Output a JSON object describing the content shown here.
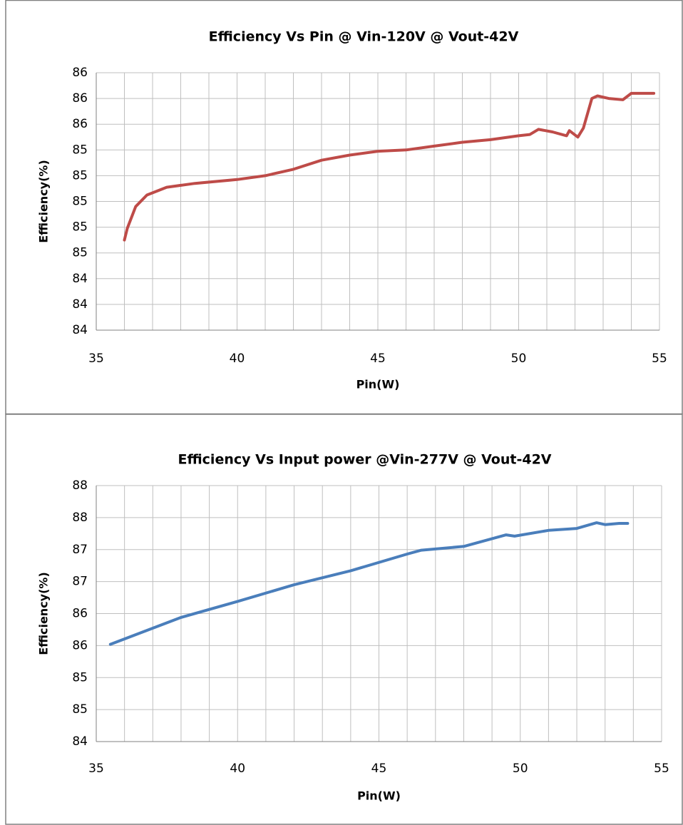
{
  "chart_data": [
    {
      "type": "line",
      "title": "Efficiency Vs Pin @ Vin-120V @ Vout-42V",
      "xlabel": "Pin(W)",
      "ylabel": "Efficiency(%)",
      "x": [
        36.0,
        36.1,
        36.4,
        36.8,
        37.5,
        38.5,
        40,
        41,
        42,
        43,
        44,
        45,
        46,
        47,
        48,
        49,
        50,
        50.4,
        50.7,
        51.2,
        51.7,
        51.8,
        52.1,
        52.3,
        52.6,
        52.8,
        53.2,
        53.7,
        54,
        54.4,
        54.8
      ],
      "series": [
        {
          "name": "Efficiency",
          "color": "#be4b48",
          "values": [
            84.7,
            84.79,
            84.96,
            85.05,
            85.11,
            85.14,
            85.17,
            85.2,
            85.25,
            85.32,
            85.36,
            85.39,
            85.4,
            85.43,
            85.46,
            85.48,
            85.51,
            85.52,
            85.56,
            85.54,
            85.51,
            85.55,
            85.5,
            85.57,
            85.8,
            85.82,
            85.8,
            85.79,
            85.84,
            85.84,
            85.84
          ]
        }
      ],
      "xlim": [
        35,
        55
      ],
      "xticks": [
        35,
        40,
        45,
        50,
        55
      ],
      "ylim": [
        84,
        86
      ],
      "yticks": [
        {
          "value": 84.0,
          "label": "84"
        },
        {
          "value": 84.2,
          "label": "84"
        },
        {
          "value": 84.4,
          "label": "84"
        },
        {
          "value": 84.6,
          "label": "85"
        },
        {
          "value": 84.8,
          "label": "85"
        },
        {
          "value": 85.0,
          "label": "85"
        },
        {
          "value": 85.2,
          "label": "85"
        },
        {
          "value": 85.4,
          "label": "85"
        },
        {
          "value": 85.6,
          "label": "86"
        },
        {
          "value": 85.8,
          "label": "86"
        },
        {
          "value": 86.0,
          "label": "86"
        }
      ],
      "grid": true
    },
    {
      "type": "line",
      "title": "Efficiency Vs Input power  @Vin-277V @ Vout-42V",
      "xlabel": "Pin(W)",
      "ylabel": "Efficiency(%)",
      "x": [
        35.5,
        38,
        40,
        42,
        44,
        46,
        46.5,
        48,
        49.5,
        49.8,
        51,
        52,
        52.7,
        53,
        53.5,
        53.8
      ],
      "series": [
        {
          "name": "Efficiency",
          "color": "#4a7ebb",
          "values": [
            85.52,
            85.94,
            86.19,
            86.45,
            86.67,
            86.93,
            86.99,
            87.05,
            87.23,
            87.21,
            87.3,
            87.33,
            87.42,
            87.39,
            87.41,
            87.41
          ]
        }
      ],
      "xlim": [
        35,
        55
      ],
      "xticks": [
        35,
        40,
        45,
        50,
        55
      ],
      "ylim": [
        84,
        88
      ],
      "yticks": [
        {
          "value": 84.0,
          "label": "84"
        },
        {
          "value": 84.5,
          "label": "85"
        },
        {
          "value": 85.0,
          "label": "85"
        },
        {
          "value": 85.5,
          "label": "86"
        },
        {
          "value": 86.0,
          "label": "86"
        },
        {
          "value": 86.5,
          "label": "87"
        },
        {
          "value": 87.0,
          "label": "87"
        },
        {
          "value": 87.5,
          "label": "88"
        },
        {
          "value": 88.0,
          "label": "88"
        }
      ],
      "grid": true
    }
  ]
}
